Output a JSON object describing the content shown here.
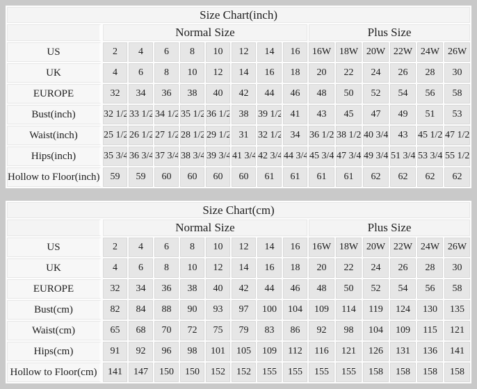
{
  "page_bg": "#c9c9c9",
  "colors": {
    "table_bg": "#fdfdfd",
    "header_bg": "#f4f4f4",
    "label_cell_bg": "#f7f7f7",
    "data_cell_bg": "#e6e6e6",
    "grid_line": "#d9d9d9",
    "grid_soft": "#e7e7e7",
    "text": "#1c1c1c"
  },
  "chart_data": [
    {
      "type": "table",
      "title": "Size Chart(inch)",
      "column_groups": [
        {
          "label": "",
          "span": 1
        },
        {
          "label": "Normal Size",
          "span": 8
        },
        {
          "label": "Plus Size",
          "span": 6
        }
      ],
      "rows": [
        {
          "label": "US",
          "normal": [
            "2",
            "4",
            "6",
            "8",
            "10",
            "12",
            "14",
            "16"
          ],
          "plus": [
            "16W",
            "18W",
            "20W",
            "22W",
            "24W",
            "26W"
          ]
        },
        {
          "label": "UK",
          "normal": [
            "4",
            "6",
            "8",
            "10",
            "12",
            "14",
            "16",
            "18"
          ],
          "plus": [
            "20",
            "22",
            "24",
            "26",
            "28",
            "30"
          ]
        },
        {
          "label": "EUROPE",
          "normal": [
            "32",
            "34",
            "36",
            "38",
            "40",
            "42",
            "44",
            "46"
          ],
          "plus": [
            "48",
            "50",
            "52",
            "54",
            "56",
            "58"
          ]
        },
        {
          "label": "Bust(inch)",
          "normal": [
            "32 1/2",
            "33 1/2",
            "34 1/2",
            "35 1/2",
            "36 1/2",
            "38",
            "39 1/2",
            "41"
          ],
          "plus": [
            "43",
            "45",
            "47",
            "49",
            "51",
            "53"
          ]
        },
        {
          "label": "Waist(inch)",
          "normal": [
            "25 1/2",
            "26 1/2",
            "27 1/2",
            "28 1/2",
            "29 1/2",
            "31",
            "32 1/2",
            "34"
          ],
          "plus": [
            "36 1/2",
            "38 1/2",
            "40 3/4",
            "43",
            "45 1/2",
            "47 1/2"
          ]
        },
        {
          "label": "Hips(inch)",
          "normal": [
            "35 3/4",
            "36 3/4",
            "37 3/4",
            "38 3/4",
            "39 3/4",
            "41 3/4",
            "42 3/4",
            "44 3/4"
          ],
          "plus": [
            "45 3/4",
            "47 3/4",
            "49 3/4",
            "51 3/4",
            "53 3/4",
            "55 1/2"
          ]
        },
        {
          "label": "Hollow to Floor(inch)",
          "normal": [
            "59",
            "59",
            "60",
            "60",
            "60",
            "60",
            "61",
            "61"
          ],
          "plus": [
            "61",
            "61",
            "62",
            "62",
            "62",
            "62"
          ]
        }
      ]
    },
    {
      "type": "table",
      "title": "Size Chart(cm)",
      "column_groups": [
        {
          "label": "",
          "span": 1
        },
        {
          "label": "Normal Size",
          "span": 8
        },
        {
          "label": "Plus Size",
          "span": 6
        }
      ],
      "rows": [
        {
          "label": "US",
          "normal": [
            "2",
            "4",
            "6",
            "8",
            "10",
            "12",
            "14",
            "16"
          ],
          "plus": [
            "16W",
            "18W",
            "20W",
            "22W",
            "24W",
            "26W"
          ]
        },
        {
          "label": "UK",
          "normal": [
            "4",
            "6",
            "8",
            "10",
            "12",
            "14",
            "16",
            "18"
          ],
          "plus": [
            "20",
            "22",
            "24",
            "26",
            "28",
            "30"
          ]
        },
        {
          "label": "EUROPE",
          "normal": [
            "32",
            "34",
            "36",
            "38",
            "40",
            "42",
            "44",
            "46"
          ],
          "plus": [
            "48",
            "50",
            "52",
            "54",
            "56",
            "58"
          ]
        },
        {
          "label": "Bust(cm)",
          "normal": [
            "82",
            "84",
            "88",
            "90",
            "93",
            "97",
            "100",
            "104"
          ],
          "plus": [
            "109",
            "114",
            "119",
            "124",
            "130",
            "135"
          ]
        },
        {
          "label": "Waist(cm)",
          "normal": [
            "65",
            "68",
            "70",
            "72",
            "75",
            "79",
            "83",
            "86"
          ],
          "plus": [
            "92",
            "98",
            "104",
            "109",
            "115",
            "121"
          ]
        },
        {
          "label": "Hips(cm)",
          "normal": [
            "91",
            "92",
            "96",
            "98",
            "101",
            "105",
            "109",
            "112"
          ],
          "plus": [
            "116",
            "121",
            "126",
            "131",
            "136",
            "141"
          ]
        },
        {
          "label": "Hollow to Floor(cm)",
          "normal": [
            "141",
            "147",
            "150",
            "150",
            "152",
            "152",
            "155",
            "155"
          ],
          "plus": [
            "155",
            "155",
            "158",
            "158",
            "158",
            "158"
          ]
        }
      ]
    }
  ]
}
